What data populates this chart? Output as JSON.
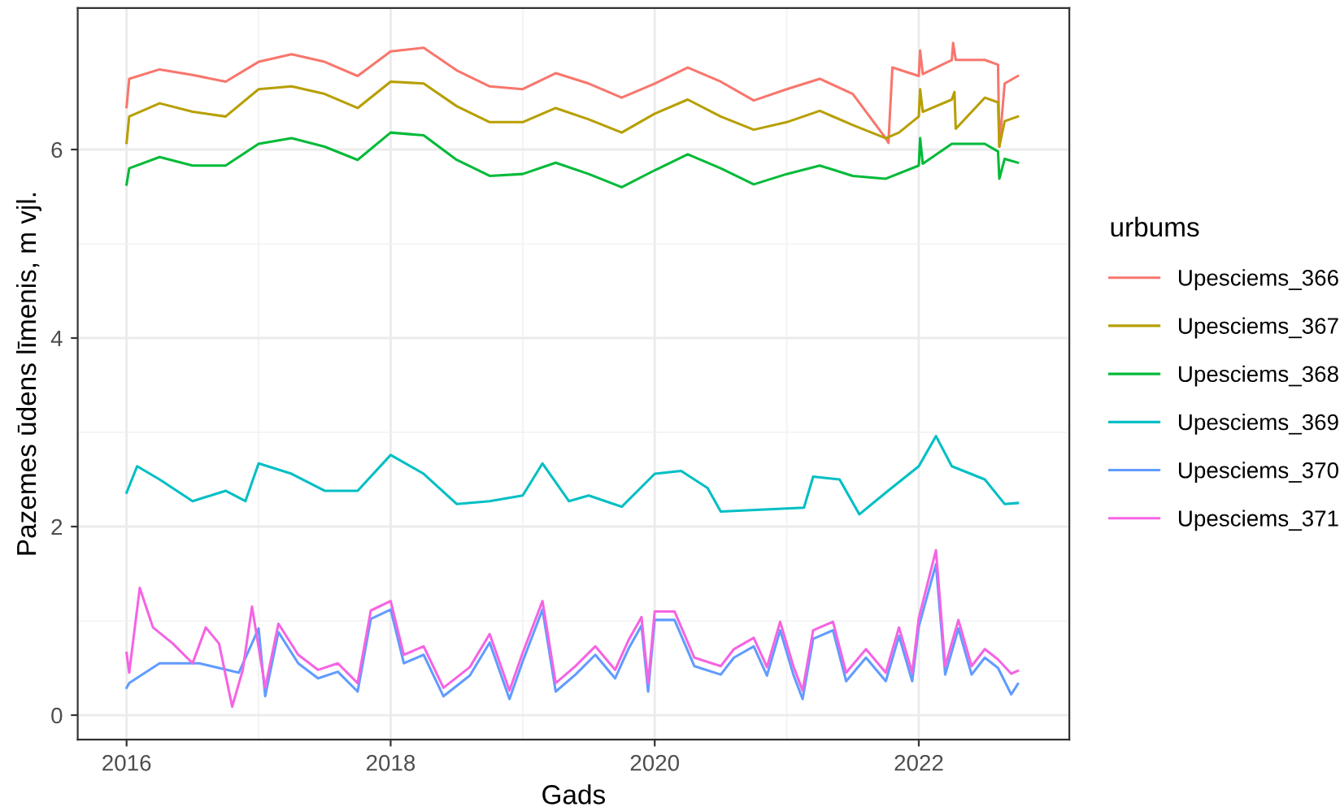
{
  "chart_data": {
    "type": "line",
    "xlabel": "Gads",
    "ylabel": "Pazemes ūdens līmenis, m vjl.",
    "legend_title": "urbums",
    "legend": "right",
    "grid": true,
    "xlim": [
      2015.63,
      2023.14
    ],
    "xticks": [
      2016,
      2018,
      2020,
      2022
    ],
    "ylim": [
      -0.26,
      7.5
    ],
    "yticks": [
      0,
      2,
      4,
      6
    ],
    "series": [
      {
        "name": "Upesciems_366",
        "color": "#F8766D",
        "x": [
          2016.0,
          2016.02,
          2016.25,
          2016.5,
          2016.75,
          2017.0,
          2017.25,
          2017.5,
          2017.75,
          2018.0,
          2018.25,
          2018.5,
          2018.75,
          2019.0,
          2019.25,
          2019.5,
          2019.75,
          2020.0,
          2020.25,
          2020.5,
          2020.75,
          2021.0,
          2021.25,
          2021.5,
          2021.75,
          2021.77,
          2021.8,
          2022.0,
          2022.01,
          2022.03,
          2022.25,
          2022.26,
          2022.28,
          2022.5,
          2022.6,
          2022.61,
          2022.65,
          2022.75
        ],
        "values": [
          6.45,
          6.75,
          6.85,
          6.79,
          6.72,
          6.93,
          7.01,
          6.93,
          6.78,
          7.04,
          7.08,
          6.84,
          6.67,
          6.64,
          6.81,
          6.7,
          6.55,
          6.7,
          6.87,
          6.72,
          6.52,
          6.64,
          6.75,
          6.59,
          6.12,
          6.07,
          6.87,
          6.78,
          7.05,
          6.8,
          6.95,
          7.13,
          6.95,
          6.95,
          6.9,
          6.03,
          6.7,
          6.78
        ]
      },
      {
        "name": "Upesciems_367",
        "color": "#B79F00",
        "x": [
          2016.0,
          2016.02,
          2016.25,
          2016.5,
          2016.75,
          2017.0,
          2017.25,
          2017.5,
          2017.75,
          2018.0,
          2018.25,
          2018.5,
          2018.75,
          2019.0,
          2019.25,
          2019.5,
          2019.75,
          2020.0,
          2020.25,
          2020.5,
          2020.75,
          2021.0,
          2021.25,
          2021.5,
          2021.75,
          2021.85,
          2022.0,
          2022.01,
          2022.03,
          2022.25,
          2022.27,
          2022.28,
          2022.5,
          2022.6,
          2022.61,
          2022.65,
          2022.75
        ],
        "values": [
          6.07,
          6.35,
          6.49,
          6.4,
          6.35,
          6.64,
          6.67,
          6.59,
          6.44,
          6.72,
          6.7,
          6.46,
          6.29,
          6.29,
          6.44,
          6.32,
          6.18,
          6.38,
          6.53,
          6.35,
          6.21,
          6.29,
          6.41,
          6.26,
          6.12,
          6.18,
          6.35,
          6.64,
          6.4,
          6.53,
          6.61,
          6.22,
          6.55,
          6.5,
          6.03,
          6.3,
          6.35
        ]
      },
      {
        "name": "Upesciems_368",
        "color": "#00BA38",
        "x": [
          2016.0,
          2016.02,
          2016.25,
          2016.5,
          2016.75,
          2017.0,
          2017.25,
          2017.5,
          2017.75,
          2018.0,
          2018.25,
          2018.5,
          2018.75,
          2019.0,
          2019.25,
          2019.5,
          2019.75,
          2020.0,
          2020.25,
          2020.5,
          2020.75,
          2021.0,
          2021.25,
          2021.5,
          2021.75,
          2022.0,
          2022.01,
          2022.03,
          2022.25,
          2022.5,
          2022.6,
          2022.61,
          2022.65,
          2022.75
        ],
        "values": [
          5.63,
          5.8,
          5.92,
          5.83,
          5.83,
          6.06,
          6.12,
          6.03,
          5.89,
          6.18,
          6.15,
          5.89,
          5.72,
          5.74,
          5.86,
          5.74,
          5.6,
          5.78,
          5.95,
          5.8,
          5.63,
          5.74,
          5.83,
          5.72,
          5.69,
          5.83,
          6.12,
          5.85,
          6.06,
          6.06,
          5.98,
          5.69,
          5.9,
          5.86
        ]
      },
      {
        "name": "Upesciems_369",
        "color": "#00BFC4",
        "x": [
          2016.0,
          2016.08,
          2016.25,
          2016.5,
          2016.75,
          2016.9,
          2017.0,
          2017.25,
          2017.5,
          2017.75,
          2018.0,
          2018.25,
          2018.5,
          2018.75,
          2019.0,
          2019.15,
          2019.35,
          2019.5,
          2019.75,
          2020.0,
          2020.2,
          2020.4,
          2020.5,
          2021.13,
          2021.2,
          2021.4,
          2021.55,
          2021.75,
          2022.0,
          2022.13,
          2022.25,
          2022.5,
          2022.65,
          2022.75
        ],
        "values": [
          2.36,
          2.64,
          2.5,
          2.27,
          2.38,
          2.27,
          2.67,
          2.56,
          2.38,
          2.38,
          2.76,
          2.56,
          2.24,
          2.27,
          2.33,
          2.67,
          2.27,
          2.33,
          2.21,
          2.56,
          2.59,
          2.41,
          2.16,
          2.2,
          2.53,
          2.5,
          2.13,
          2.36,
          2.64,
          2.96,
          2.64,
          2.5,
          2.24,
          2.25
        ]
      },
      {
        "name": "Upesciems_370",
        "color": "#619CFF",
        "x": [
          2016.0,
          2016.02,
          2016.25,
          2016.55,
          2016.85,
          2017.0,
          2017.05,
          2017.15,
          2017.3,
          2017.45,
          2017.6,
          2017.75,
          2017.85,
          2018.0,
          2018.1,
          2018.25,
          2018.4,
          2018.6,
          2018.75,
          2018.9,
          2019.0,
          2019.15,
          2019.25,
          2019.4,
          2019.55,
          2019.7,
          2019.8,
          2019.9,
          2019.95,
          2020.0,
          2020.15,
          2020.3,
          2020.5,
          2020.6,
          2020.75,
          2020.85,
          2020.95,
          2021.05,
          2021.12,
          2021.2,
          2021.35,
          2021.45,
          2021.6,
          2021.75,
          2021.85,
          2021.95,
          2022.0,
          2022.13,
          2022.2,
          2022.3,
          2022.4,
          2022.5,
          2022.6,
          2022.7,
          2022.75
        ],
        "values": [
          0.29,
          0.34,
          0.55,
          0.55,
          0.45,
          0.92,
          0.2,
          0.88,
          0.55,
          0.39,
          0.46,
          0.25,
          1.02,
          1.12,
          0.55,
          0.64,
          0.2,
          0.42,
          0.77,
          0.17,
          0.57,
          1.12,
          0.25,
          0.43,
          0.64,
          0.39,
          0.7,
          0.95,
          0.25,
          1.01,
          1.01,
          0.52,
          0.43,
          0.61,
          0.73,
          0.42,
          0.9,
          0.43,
          0.17,
          0.81,
          0.9,
          0.36,
          0.61,
          0.36,
          0.84,
          0.36,
          0.94,
          1.6,
          0.43,
          0.92,
          0.43,
          0.61,
          0.5,
          0.22,
          0.33
        ]
      },
      {
        "name": "Upesciems_371",
        "color": "#F564E3",
        "x": [
          2016.0,
          2016.02,
          2016.1,
          2016.2,
          2016.35,
          2016.5,
          2016.6,
          2016.7,
          2016.8,
          2016.88,
          2016.95,
          2017.05,
          2017.15,
          2017.3,
          2017.45,
          2017.6,
          2017.75,
          2017.85,
          2018.0,
          2018.1,
          2018.25,
          2018.4,
          2018.6,
          2018.75,
          2018.9,
          2019.0,
          2019.15,
          2019.25,
          2019.4,
          2019.55,
          2019.7,
          2019.8,
          2019.9,
          2019.95,
          2020.0,
          2020.15,
          2020.3,
          2020.5,
          2020.6,
          2020.75,
          2020.85,
          2020.95,
          2021.05,
          2021.12,
          2021.2,
          2021.35,
          2021.45,
          2021.6,
          2021.75,
          2021.85,
          2021.95,
          2022.0,
          2022.13,
          2022.2,
          2022.3,
          2022.4,
          2022.5,
          2022.6,
          2022.7,
          2022.75
        ],
        "values": [
          0.66,
          0.45,
          1.35,
          0.93,
          0.76,
          0.55,
          0.93,
          0.76,
          0.09,
          0.48,
          1.15,
          0.29,
          0.97,
          0.64,
          0.48,
          0.55,
          0.34,
          1.11,
          1.21,
          0.64,
          0.73,
          0.29,
          0.51,
          0.86,
          0.26,
          0.66,
          1.21,
          0.34,
          0.52,
          0.73,
          0.48,
          0.79,
          1.04,
          0.34,
          1.1,
          1.1,
          0.61,
          0.52,
          0.7,
          0.82,
          0.51,
          0.99,
          0.52,
          0.26,
          0.9,
          0.99,
          0.45,
          0.7,
          0.45,
          0.93,
          0.45,
          1.03,
          1.75,
          0.52,
          1.01,
          0.52,
          0.7,
          0.59,
          0.44,
          0.47
        ]
      }
    ]
  }
}
